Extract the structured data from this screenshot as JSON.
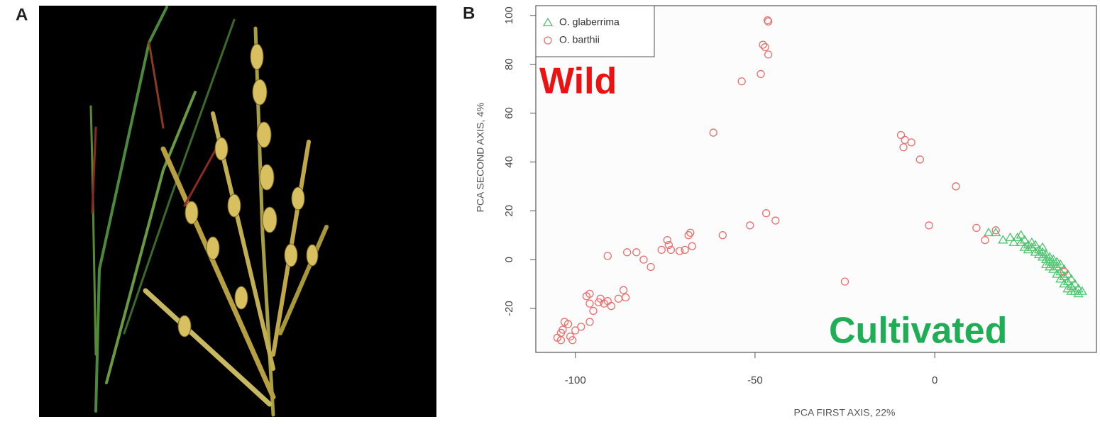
{
  "figure": {
    "panel_labels": [
      "A",
      "B"
    ]
  },
  "chart_data": {
    "type": "scatter",
    "x_label": "PCA FIRST AXIS, 22%",
    "y_label": "PCA SECOND AXIS, 4%",
    "xlim": [
      -111,
      45
    ],
    "ylim": [
      -38,
      104
    ],
    "xticks": [
      -100,
      -50,
      0
    ],
    "yticks": [
      -20,
      0,
      20,
      40,
      60,
      80,
      100
    ],
    "grid": false,
    "legend": "top-left",
    "annotations": [
      {
        "text": "Wild",
        "color": "#ee1111"
      },
      {
        "text": "Cultivated",
        "color": "#1fae55"
      }
    ],
    "series": [
      {
        "name": "O. glaberrima",
        "color": "#4cc46e",
        "marker": "triangle",
        "x": [
          15,
          17,
          19,
          21,
          22,
          23,
          24,
          24,
          25,
          25,
          26,
          26,
          27,
          27,
          28,
          28,
          29,
          29,
          30,
          30,
          30,
          31,
          31,
          31,
          32,
          32,
          32,
          33,
          33,
          33,
          34,
          34,
          34,
          35,
          35,
          35,
          36,
          36,
          36,
          37,
          37,
          37,
          38,
          38,
          38,
          39,
          39,
          40,
          40,
          41
        ],
        "values": [
          11,
          11,
          8,
          9,
          7,
          9,
          10,
          7,
          8,
          5,
          6,
          4,
          7,
          5,
          3,
          6,
          4,
          2,
          3,
          1,
          5,
          2,
          0,
          -2,
          1,
          -1,
          -3,
          0,
          -2,
          -4,
          -1,
          -3,
          -6,
          -2,
          -5,
          -8,
          -4,
          -7,
          -10,
          -6,
          -9,
          -12,
          -8,
          -11,
          -13,
          -10,
          -13,
          -12,
          -14,
          -13
        ]
      },
      {
        "name": "O. barthii",
        "color": "#ea6f6c",
        "marker": "circle",
        "x": [
          -46.5,
          -46.3,
          -47.8,
          -47.2,
          -46.3,
          -48.4,
          -53.7,
          -61.6,
          -9.4,
          -8.3,
          -6.5,
          -8.7,
          -4.1,
          5.9,
          -46.9,
          -44.3,
          -51.4,
          -1.6,
          -59,
          -68,
          -68.5,
          -67.5,
          -69.5,
          -74.4,
          -74,
          -73.4,
          -71,
          -76,
          -79,
          -81,
          -83,
          -85.6,
          -91,
          -25,
          11.6,
          14,
          17,
          36,
          -86.6,
          -86,
          -88,
          -91,
          -90,
          -92,
          -93,
          -96,
          -96.9,
          -96,
          -95,
          -93.5,
          -96,
          -98.4,
          -100,
          -100.8,
          -101.4,
          -103.5,
          -103,
          -104,
          -105,
          -104,
          -102
        ],
        "values": [
          98,
          97.5,
          88,
          87,
          84,
          76,
          73,
          52,
          51,
          49,
          48,
          46,
          41,
          30,
          19,
          16,
          14,
          14,
          10,
          11,
          10,
          5.5,
          4,
          8,
          6,
          4,
          3.5,
          4,
          -3,
          0,
          3,
          3,
          1.5,
          -9,
          13,
          8,
          12,
          -5,
          -12.5,
          -15.5,
          -16,
          -17,
          -19,
          -18,
          -16,
          -14,
          -15,
          -18,
          -21,
          -17.5,
          -25.5,
          -27.5,
          -29,
          -33,
          -31.5,
          -28.7,
          -25.5,
          -30,
          -32,
          -33,
          -26.4
        ]
      }
    ]
  }
}
